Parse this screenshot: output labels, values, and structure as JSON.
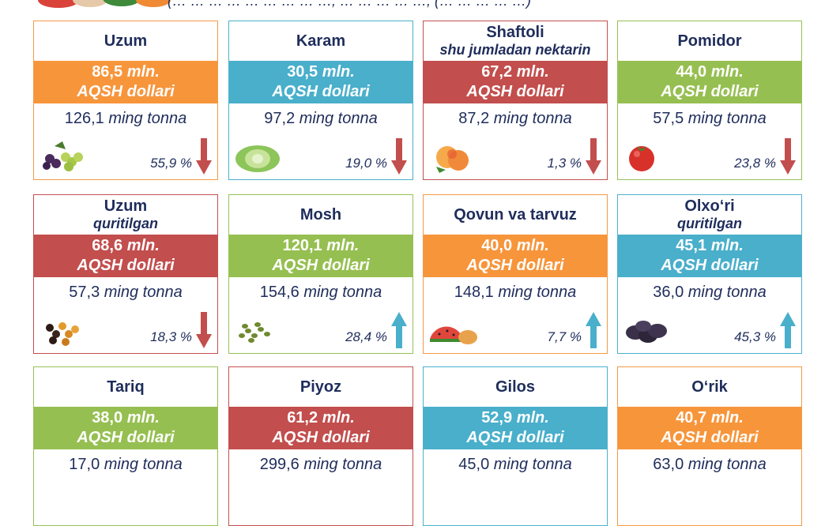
{
  "header_text": "(… … … … … … … … …, … … … … …, (… … … … …)",
  "colors": {
    "orange": "#f7953b",
    "teal": "#49afcb",
    "red": "#c24e4d",
    "green": "#96bf51",
    "text": "#1f2d5c"
  },
  "cards": [
    {
      "title": "Uzum",
      "subtitle": "",
      "value": "86,5",
      "unit": "mln.",
      "currency": "AQSH dollari",
      "tons": "126,1",
      "tons_unit": "ming tonna",
      "pct": "55,9 %",
      "trend": "down",
      "color": "orange",
      "icon": "grapes-icon"
    },
    {
      "title": "Karam",
      "subtitle": "",
      "value": "30,5",
      "unit": "mln.",
      "currency": "AQSH dollari",
      "tons": "97,2",
      "tons_unit": "ming tonna",
      "pct": "19,0 %",
      "trend": "down",
      "color": "teal",
      "icon": "cabbage-icon"
    },
    {
      "title": "Shaftoli",
      "subtitle": "shu jumladan nektarin",
      "value": "67,2",
      "unit": "mln.",
      "currency": "AQSH dollari",
      "tons": "87,2",
      "tons_unit": "ming tonna",
      "pct": "1,3 %",
      "trend": "down",
      "color": "red",
      "icon": "peach-icon"
    },
    {
      "title": "Pomidor",
      "subtitle": "",
      "value": "44,0",
      "unit": "mln.",
      "currency": "AQSH dollari",
      "tons": "57,5",
      "tons_unit": "ming tonna",
      "pct": "23,8 %",
      "trend": "down",
      "color": "green",
      "icon": "tomato-icon"
    },
    {
      "title": "Uzum",
      "subtitle": "quritilgan",
      "value": "68,6",
      "unit": "mln.",
      "currency": "AQSH dollari",
      "tons": "57,3",
      "tons_unit": "ming tonna",
      "pct": "18,3 %",
      "trend": "down",
      "color": "red",
      "icon": "raisins-icon"
    },
    {
      "title": "Mosh",
      "subtitle": "",
      "value": "120,1",
      "unit": "mln.",
      "currency": "AQSH dollari",
      "tons": "154,6",
      "tons_unit": "ming tonna",
      "pct": "28,4 %",
      "trend": "up",
      "color": "green",
      "icon": "mung-bean-icon"
    },
    {
      "title": "Qovun va tarvuz",
      "subtitle": "",
      "value": "40,0",
      "unit": "mln.",
      "currency": "AQSH dollari",
      "tons": "148,1",
      "tons_unit": "ming tonna",
      "pct": "7,7 %",
      "trend": "up",
      "color": "orange",
      "icon": "melon-icon"
    },
    {
      "title": "Olxo‘ri",
      "subtitle": "quritilgan",
      "value": "45,1",
      "unit": "mln.",
      "currency": "AQSH dollari",
      "tons": "36,0",
      "tons_unit": "ming tonna",
      "pct": "45,3 %",
      "trend": "up",
      "color": "teal",
      "icon": "prune-icon"
    },
    {
      "title": "Tariq",
      "subtitle": "",
      "value": "38,0",
      "unit": "mln.",
      "currency": "AQSH dollari",
      "tons": "17,0",
      "tons_unit": "ming tonna",
      "pct": "",
      "trend": "",
      "color": "green",
      "icon": ""
    },
    {
      "title": "Piyoz",
      "subtitle": "",
      "value": "61,2",
      "unit": "mln.",
      "currency": "AQSH dollari",
      "tons": "299,6",
      "tons_unit": "ming tonna",
      "pct": "",
      "trend": "",
      "color": "red",
      "icon": ""
    },
    {
      "title": "Gilos",
      "subtitle": "",
      "value": "52,9",
      "unit": "mln.",
      "currency": "AQSH dollari",
      "tons": "45,0",
      "tons_unit": "ming tonna",
      "pct": "",
      "trend": "",
      "color": "teal",
      "icon": ""
    },
    {
      "title": "O‘rik",
      "subtitle": "",
      "value": "40,7",
      "unit": "mln.",
      "currency": "AQSH dollari",
      "tons": "63,0",
      "tons_unit": "ming tonna",
      "pct": "",
      "trend": "",
      "color": "orange",
      "icon": ""
    }
  ]
}
